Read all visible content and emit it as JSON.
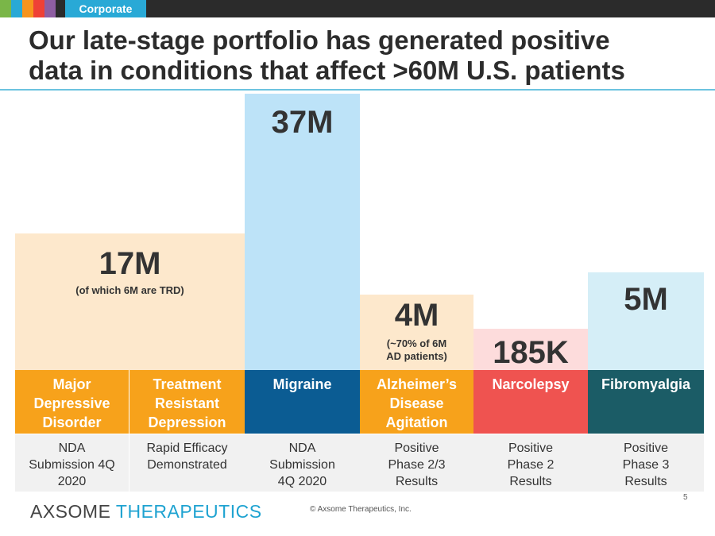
{
  "header": {
    "tab_label": "Corporate",
    "accent_colors": [
      "#7ab648",
      "#29a9d6",
      "#f7941d",
      "#ef4136",
      "#8e5ea2"
    ]
  },
  "title": {
    "line1": "Our late-stage portfolio has generated positive",
    "line2": "data in conditions that affect >60M U.S. patients"
  },
  "columns": [
    {
      "value": "17M",
      "note": "(of which 6M are TRD)",
      "bar_color": "#fde8cc"
    },
    {
      "value": "37M",
      "note": "",
      "bar_color": "#bde3f8"
    },
    {
      "value": "4M",
      "note": "(~70% of 6M AD patients)",
      "bar_color": "#fde8cc"
    },
    {
      "value": "185K",
      "note": "",
      "bar_color": "#fddcdc"
    },
    {
      "value": "5M",
      "note": "",
      "bar_color": "#d5eef7"
    }
  ],
  "categories": [
    {
      "label": "Major Depressive Disorder",
      "color": "#f7a21b"
    },
    {
      "label": "Treatment Resistant Depression",
      "color": "#f7a21b"
    },
    {
      "label": "Migraine",
      "color": "#0b5c93"
    },
    {
      "label": "Alzheimer’s Disease Agitation",
      "color": "#f7a21b"
    },
    {
      "label": "Narcolepsy",
      "color": "#ef5350"
    },
    {
      "label": "Fibromyalgia",
      "color": "#1b5c66"
    }
  ],
  "statuses": [
    "NDA Submission 4Q 2020",
    "Rapid Efficacy Demonstrated",
    "NDA Submission 4Q 2020",
    "Positive Phase 2/3 Results",
    "Positive Phase 2 Results",
    "Positive Phase 3 Results"
  ],
  "footer": {
    "logo_part1": "AXSOME",
    "logo_part2": "THERAPEUTICS",
    "copyright": "© Axsome Therapeutics, Inc.",
    "page_number": "5"
  }
}
